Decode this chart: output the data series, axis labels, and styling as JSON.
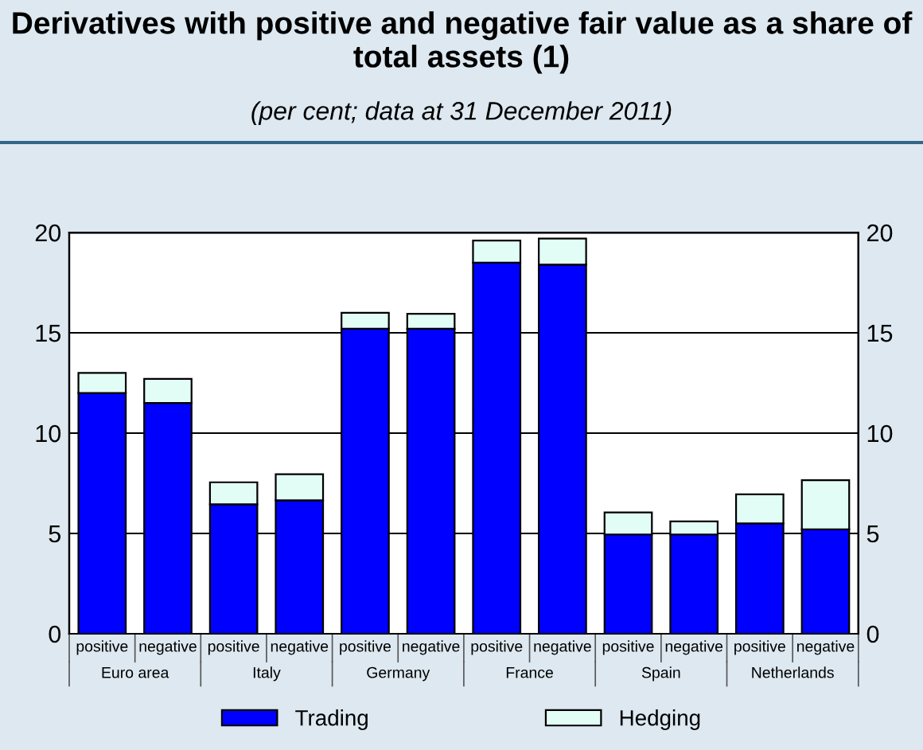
{
  "chart_data": {
    "type": "bar",
    "stacked": true,
    "title": "Derivatives with positive and negative fair value as a share of total assets (1)",
    "subtitle": "(per cent; data at 31 December 2011)",
    "categories": [
      "positive",
      "negative",
      "positive",
      "negative",
      "positive",
      "negative",
      "positive",
      "negative",
      "positive",
      "negative",
      "positive",
      "negative"
    ],
    "annotations": [
      "Euro area",
      "Italy",
      "Germany",
      "France",
      "Spain",
      "Netherlands"
    ],
    "series": [
      {
        "name": "Trading",
        "color": "#0000ff",
        "values": [
          12.0,
          11.5,
          6.45,
          6.65,
          15.2,
          15.2,
          18.5,
          18.4,
          4.95,
          4.95,
          5.5,
          5.2
        ]
      },
      {
        "name": "Hedging",
        "color": "#e2fcf6",
        "values": [
          1.0,
          1.2,
          1.1,
          1.3,
          0.8,
          0.75,
          1.1,
          1.3,
          1.1,
          0.65,
          1.45,
          2.45
        ]
      }
    ],
    "ylim": [
      0,
      20
    ],
    "yticks": [
      0,
      5,
      10,
      15,
      20
    ],
    "y2lim": [
      0,
      20
    ],
    "y2ticks": [
      0,
      5,
      10,
      15,
      20
    ],
    "grid": "y",
    "legend": "bottom"
  }
}
